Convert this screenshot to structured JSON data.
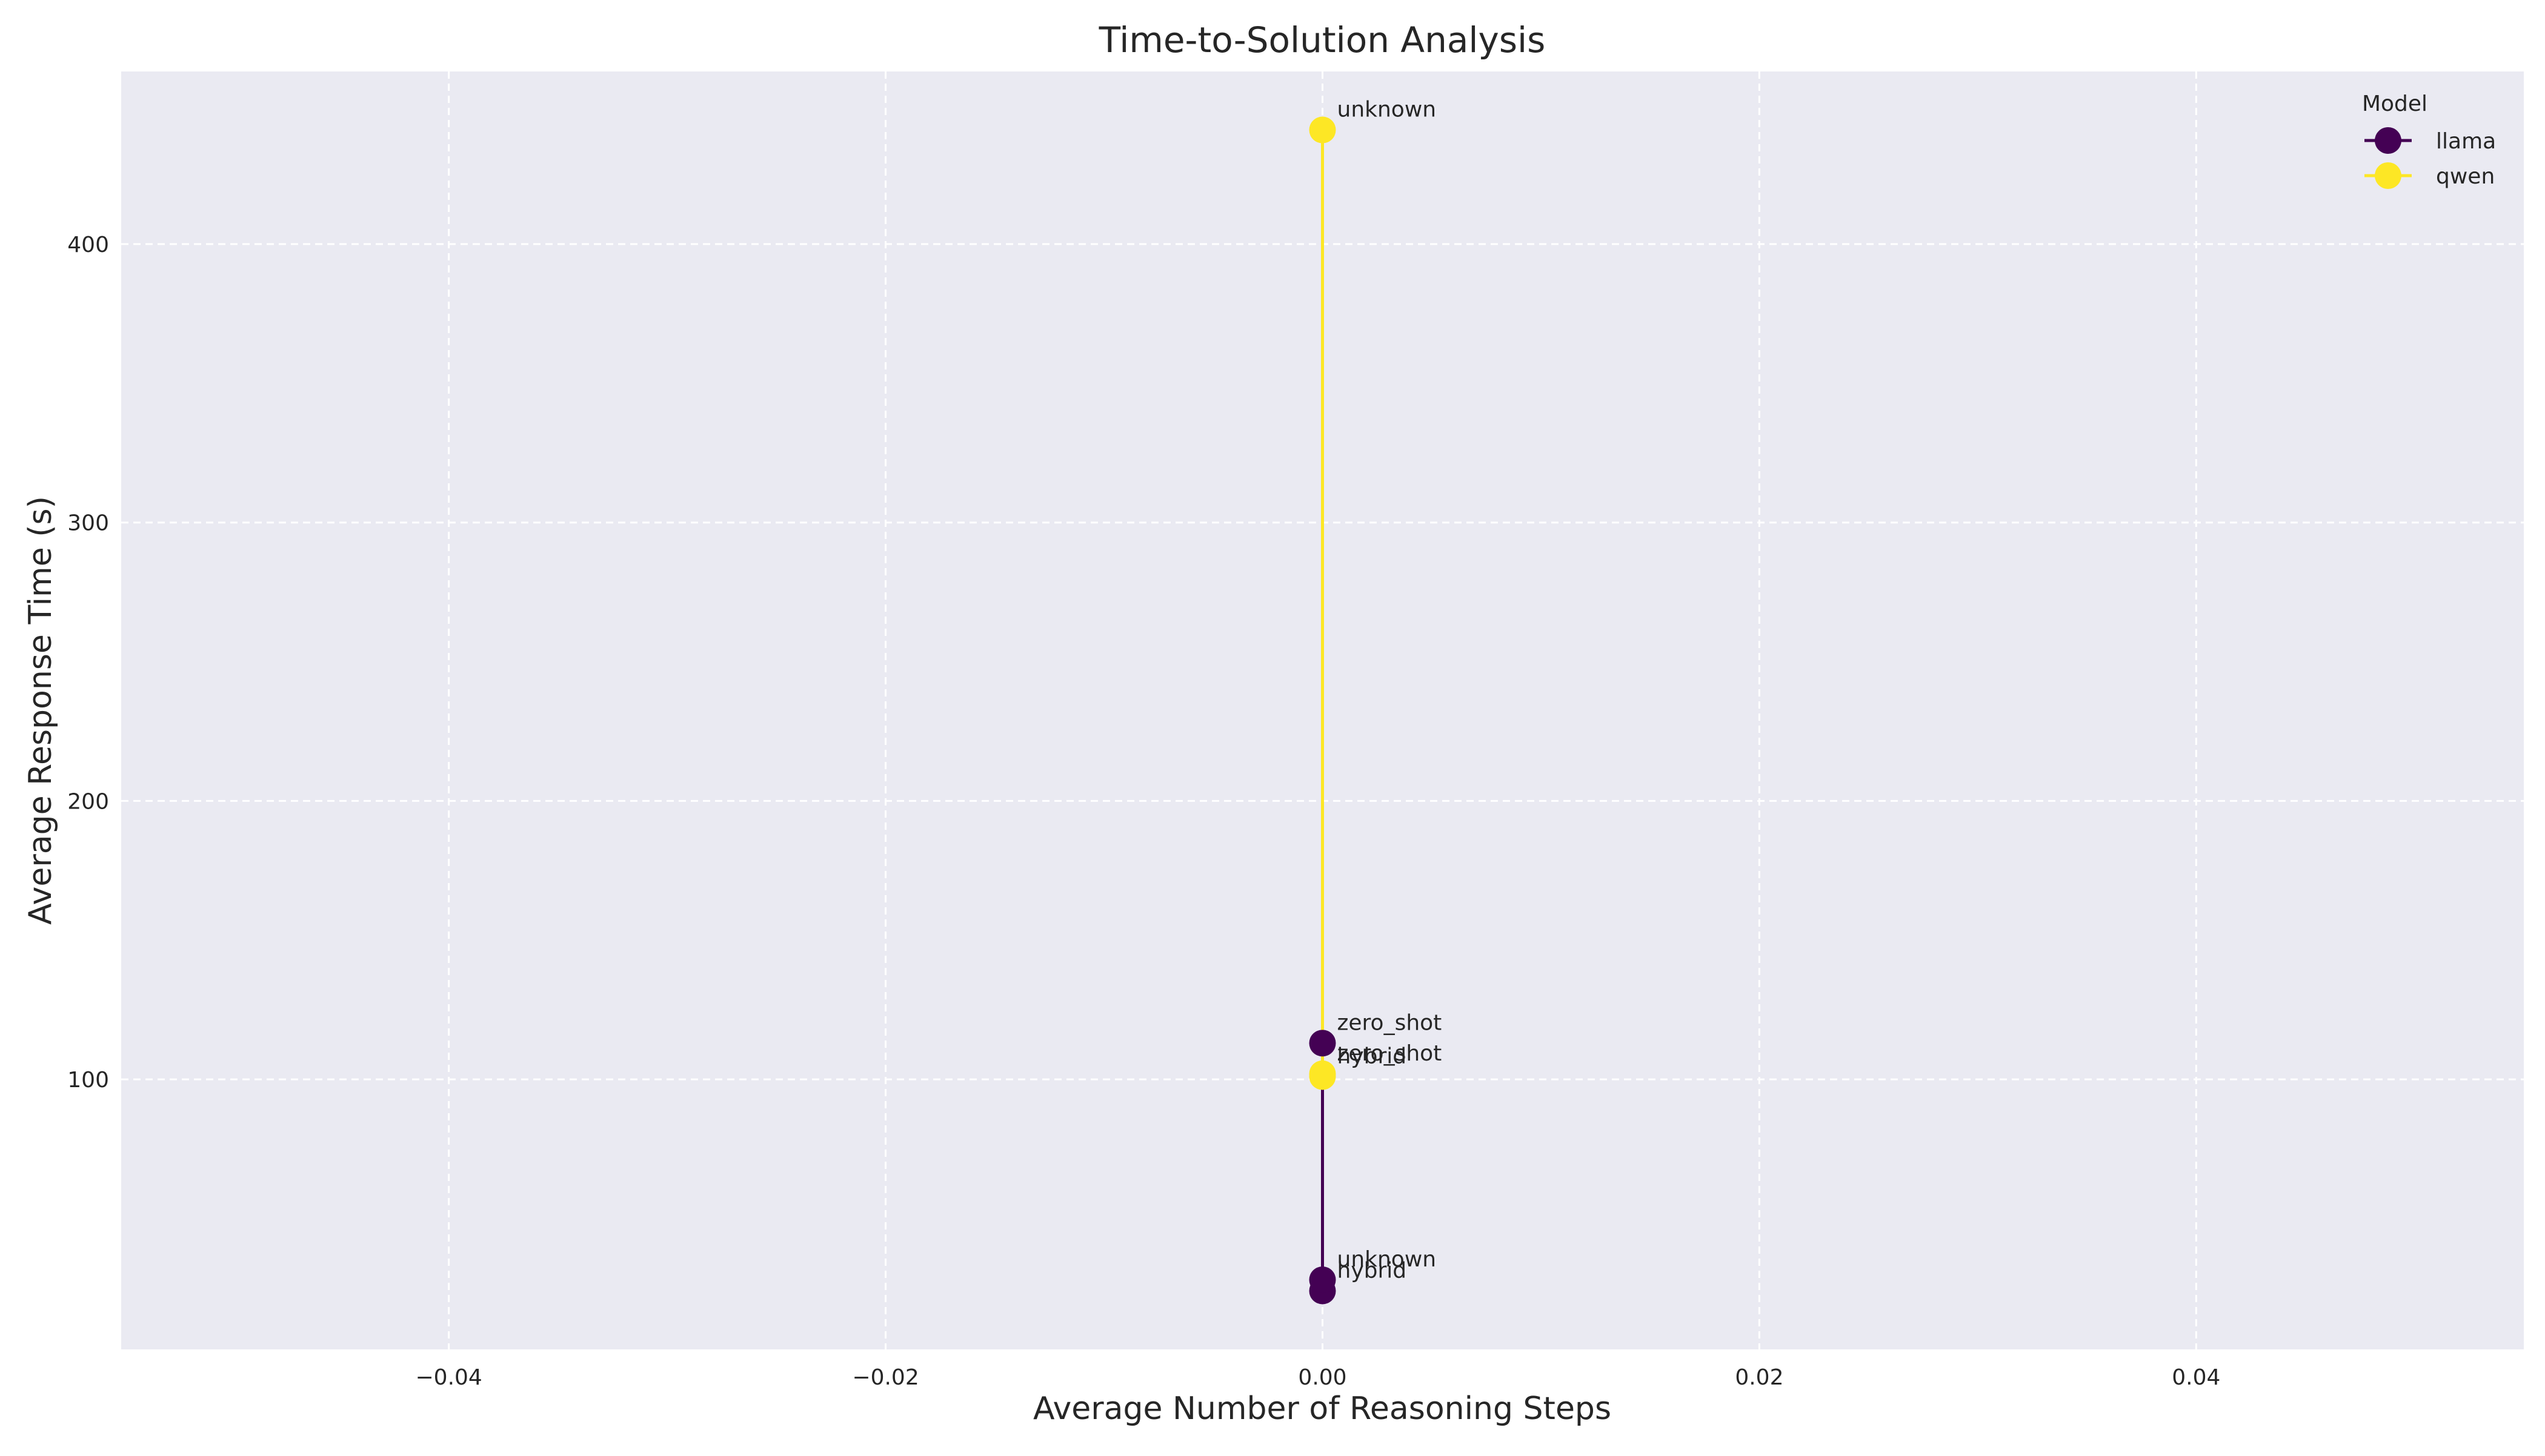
{
  "chart_data": {
    "type": "line",
    "title": "Time-to-Solution Analysis",
    "xlabel": "Average Number of Reasoning Steps",
    "ylabel": "Average Response Time (s)",
    "xlim": [
      -0.055,
      0.055
    ],
    "ylim": [
      3,
      462
    ],
    "xticks": [
      -0.04,
      -0.02,
      0.0,
      0.02,
      0.04
    ],
    "xtick_labels": [
      "−0.04",
      "−0.02",
      "0.00",
      "0.02",
      "0.04"
    ],
    "yticks": [
      100,
      200,
      300,
      400
    ],
    "ytick_labels": [
      "100",
      "200",
      "300",
      "400"
    ],
    "grid": true,
    "background": "#eaeaf2",
    "legend": {
      "title": "Model",
      "placement": "top-right"
    },
    "series": [
      {
        "name": "llama",
        "color": "#440154",
        "points": [
          {
            "x": 0.0,
            "y": 24,
            "label": "hybrid"
          },
          {
            "x": 0.0,
            "y": 28,
            "label": "unknown"
          },
          {
            "x": 0.0,
            "y": 113,
            "label": "zero_shot"
          }
        ]
      },
      {
        "name": "qwen",
        "color": "#fde725",
        "points": [
          {
            "x": 0.0,
            "y": 101,
            "label": "hybrid"
          },
          {
            "x": 0.0,
            "y": 102,
            "label": "zero_shot"
          },
          {
            "x": 0.0,
            "y": 441,
            "label": "unknown"
          }
        ]
      }
    ]
  }
}
